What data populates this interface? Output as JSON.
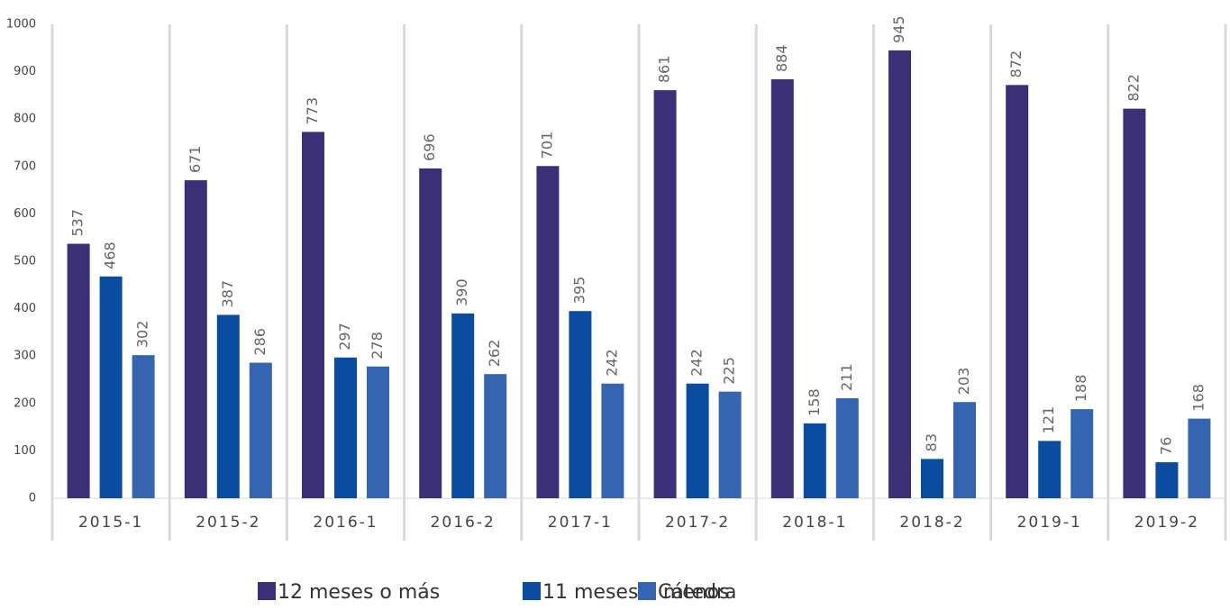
{
  "chart_data": {
    "type": "bar",
    "categories": [
      "2015-1",
      "2015-2",
      "2016-1",
      "2016-2",
      "2017-1",
      "2017-2",
      "2018-1",
      "2018-2",
      "2019-1",
      "2019-2"
    ],
    "series": [
      {
        "name": "12 meses o más",
        "color": "#3b3077",
        "values": [
          537,
          671,
          773,
          696,
          701,
          861,
          884,
          945,
          872,
          822
        ]
      },
      {
        "name": "11 meses o menos",
        "color": "#0a4da0",
        "values": [
          468,
          387,
          297,
          390,
          395,
          242,
          158,
          83,
          121,
          76
        ]
      },
      {
        "name": "Cátedra",
        "color": "#3565b0",
        "values": [
          302,
          286,
          278,
          262,
          242,
          225,
          211,
          203,
          188,
          168
        ]
      }
    ],
    "ylim": [
      0,
      1000
    ],
    "yticks": [
      0,
      100,
      200,
      300,
      400,
      500,
      600,
      700,
      800,
      900,
      1000
    ],
    "legend": "bottom"
  }
}
